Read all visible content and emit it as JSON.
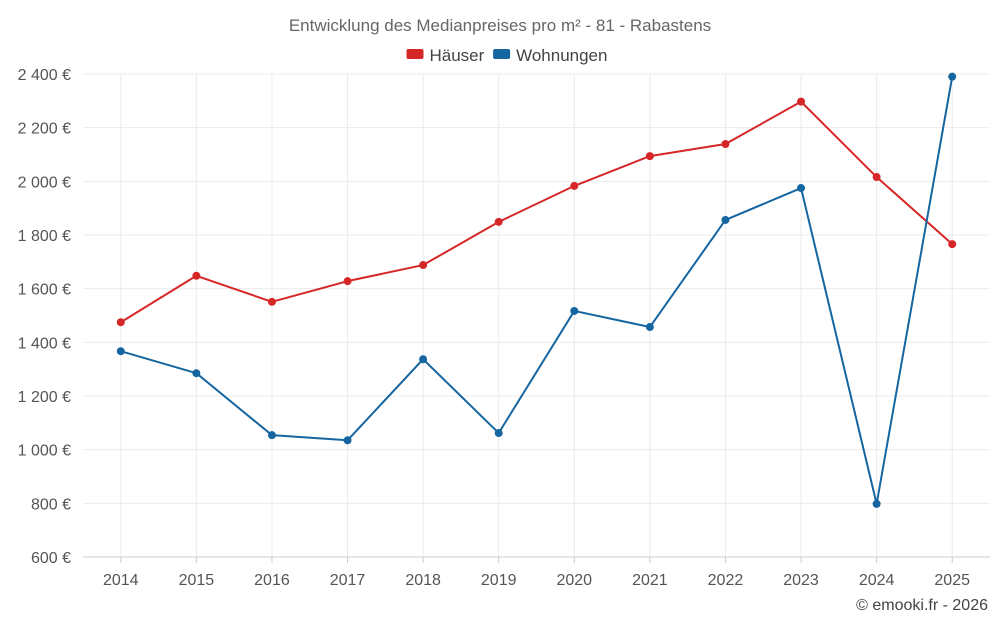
{
  "chart_data": {
    "type": "line",
    "title": "Entwicklung des Medianpreises pro m² - 81 - Rabastens",
    "x": [
      "2014",
      "2015",
      "2016",
      "2017",
      "2018",
      "2019",
      "2020",
      "2021",
      "2022",
      "2023",
      "2024",
      "2025"
    ],
    "ylim": [
      600,
      2400
    ],
    "yticks": [
      600,
      800,
      1000,
      1200,
      1400,
      1600,
      1800,
      2000,
      2200,
      2400
    ],
    "ytick_labels": [
      "600 €",
      "800 €",
      "1 000 €",
      "1 200 €",
      "1 400 €",
      "1 600 €",
      "1 800 €",
      "2 000 €",
      "2 200 €",
      "2 400 €"
    ],
    "xlabel": "",
    "ylabel": "",
    "legend_position": "top-center",
    "grid": true,
    "series": [
      {
        "name": "Häuser",
        "color": "#d62728",
        "values": [
          1475,
          1648,
          1551,
          1628,
          1688,
          1849,
          1983,
          2094,
          2139,
          2297,
          2016,
          1766
        ]
      },
      {
        "name": "Wohnungen",
        "color": "#1565a0",
        "values": [
          1367,
          1285,
          1054,
          1035,
          1337,
          1062,
          1517,
          1457,
          1856,
          1975,
          798,
          2390
        ]
      }
    ]
  },
  "credit": "© emooki.fr - 2026"
}
